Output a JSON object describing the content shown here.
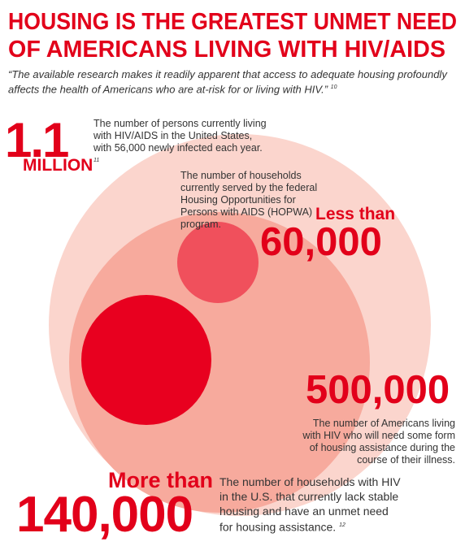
{
  "header": {
    "title_lines": [
      "HOUSING IS THE GREATEST UNMET NEED",
      "OF AMERICANS LIVING WITH HIV/AIDS"
    ],
    "quote": "“The available research makes it readily apparent that access to adequate housing profoundly affects the health of Americans who are at-risk for or living with HIV.”",
    "quote_note": "10"
  },
  "stats": [
    {
      "figure": "1.1",
      "unit": "MILLION",
      "description": "The number of persons currently living with HIV/AIDS in the United States, with 56,000 newly infected each year.",
      "note": "11"
    },
    {
      "qualifier": "Less than",
      "figure": "60,000",
      "description": "The number of households currently served by the federal Housing Opportunities for Persons with AIDS (HOPWA) program."
    },
    {
      "figure": "500,000",
      "description": "The number of Americans living with HIV who will need some form of housing assistance during the course of their illness."
    },
    {
      "qualifier": "More than",
      "figure": "140,000",
      "description": "The number of households with HIV in the U.S. that currently lack stable housing and have an unmet need for housing assistance.",
      "note": "12"
    }
  ]
}
